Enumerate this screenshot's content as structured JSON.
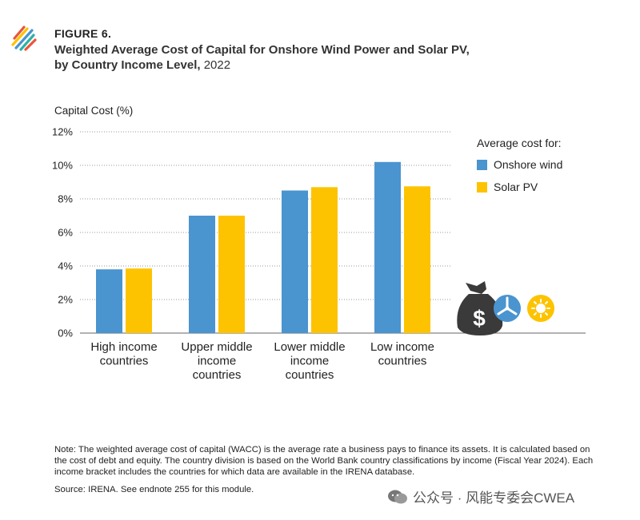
{
  "header": {
    "figure_label": "FIGURE 6.",
    "title_line1": "Weighted Average Cost of Capital for Onshore Wind Power and Solar PV,",
    "title_line2": "by Country Income Level,",
    "title_year": "2022"
  },
  "chart_data": {
    "type": "bar",
    "ylabel": "Capital Cost (%)",
    "ylim": [
      0,
      12
    ],
    "yticks": [
      "0%",
      "2%",
      "4%",
      "6%",
      "8%",
      "10%",
      "12%"
    ],
    "ytick_values": [
      0,
      2,
      4,
      6,
      8,
      10,
      12
    ],
    "grid": true,
    "categories": [
      [
        "High income",
        "countries"
      ],
      [
        "Upper middle",
        "income",
        "countries"
      ],
      [
        "Lower middle",
        "income",
        "countries"
      ],
      [
        "Low income",
        "countries"
      ]
    ],
    "legend_title": "Average cost for:",
    "legend_position": "right",
    "series": [
      {
        "name": "Onshore wind",
        "color": "#4a94d0",
        "values": [
          3.8,
          7.0,
          8.5,
          10.2
        ]
      },
      {
        "name": "Solar PV",
        "color": "#fdc300",
        "values": [
          3.85,
          7.0,
          8.7,
          8.75
        ]
      }
    ]
  },
  "icons": [
    "money-bag-icon",
    "wind-turbine-icon",
    "sun-icon"
  ],
  "footer": {
    "note_line1": "Note: The weighted average cost of capital (WACC) is the average rate a business pays to finance its assets. It is calculated based on",
    "note_line2": "the cost of debt and equity. The country division is based on the World Bank country classifications by income (Fiscal Year 2024). Each",
    "note_line3": "income bracket includes the countries for which data are available in the IRENA database.",
    "source": "Source: IRENA. See endnote 255 for this module."
  },
  "watermark": {
    "text": "公众号 · 风能专委会CWEA"
  }
}
